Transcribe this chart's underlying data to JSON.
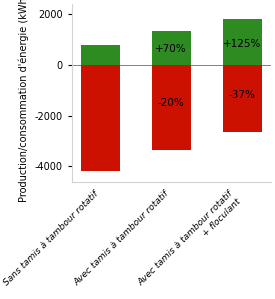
{
  "categories": [
    "Sans tamis à tambour rotatif",
    "Avec tamis à tambour rotatif",
    "Avec tamis à tambour rotatif\n+ floculant"
  ],
  "green_values": [
    800,
    1360,
    1800
  ],
  "red_values": [
    -4200,
    -3360,
    -2640
  ],
  "green_labels": [
    "",
    "+70%",
    "+125%"
  ],
  "red_labels": [
    "",
    "-20%",
    "-37%"
  ],
  "green_color": "#2E8B22",
  "red_color": "#CC1100",
  "ylabel": "Production/consommation d'énergie (kWh/d)",
  "ylim": [
    -4600,
    2400
  ],
  "yticks": [
    -4000,
    -2000,
    0,
    2000
  ],
  "bar_width": 0.55,
  "label_fontsize": 7.5,
  "tick_fontsize": 7,
  "ylabel_fontsize": 7.0
}
